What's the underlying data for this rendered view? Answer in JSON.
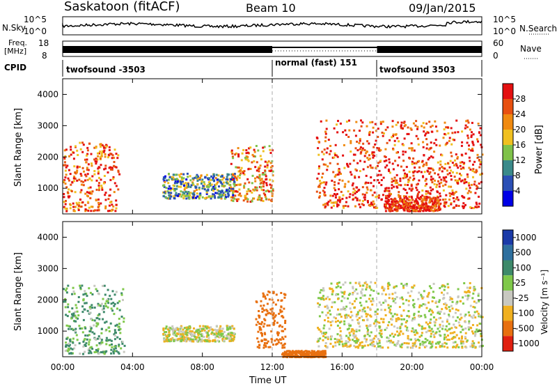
{
  "header": {
    "station": "Saskatoon (fitACF)",
    "beam": "Beam 10",
    "date": "09/Jan/2015"
  },
  "noise_panel": {
    "left_label": "N.Sky",
    "right_label": "N.Search",
    "left_ticks": [
      "10^5",
      "10^0"
    ],
    "right_ticks": [
      "10^5",
      "10^0"
    ]
  },
  "freq_panel": {
    "left_label_line1": "Freq.",
    "left_label_line2": "[MHz]",
    "right_label": "Nave",
    "left_ticks": [
      "18",
      "8"
    ],
    "right_ticks": [
      "60",
      "0"
    ]
  },
  "cpid": {
    "label": "CPID",
    "segments": [
      "twofsound -3503",
      "normal (fast) 151",
      "twofsound 3503"
    ]
  },
  "power_panel": {
    "ylabel": "Slant Range [km]",
    "yticks": [
      "1000",
      "2000",
      "3000",
      "4000"
    ],
    "colorbar_title": "Power [dB]",
    "colorbar_ticks": [
      "4",
      "8",
      "12",
      "16",
      "20",
      "24",
      "28"
    ],
    "colors": [
      "#0000e6",
      "#2b4fb5",
      "#3a8a8a",
      "#7fc24a",
      "#f0c020",
      "#f08a10",
      "#e85010",
      "#e41010"
    ]
  },
  "velocity_panel": {
    "ylabel": "Slant Range [km]",
    "yticks": [
      "1000",
      "2000",
      "3000",
      "4000"
    ],
    "colorbar_title": "Velocity [m s⁻¹]",
    "colorbar_ticks": [
      "1000",
      "500",
      "100",
      "25",
      "-25",
      "-100",
      "-500",
      "-1000"
    ],
    "colors": [
      "#1a3aa8",
      "#2e6f9e",
      "#3e8a6a",
      "#7fc84a",
      "#c8c8c0",
      "#f0b020",
      "#e87010",
      "#e02010"
    ]
  },
  "x_axis": {
    "ticks": [
      "00:00",
      "04:00",
      "08:00",
      "12:00",
      "16:00",
      "20:00",
      "00:00"
    ],
    "label": "Time UT"
  },
  "chart_data": [
    {
      "type": "line",
      "title": "Saskatoon (fitACF)",
      "subtitle": "Beam 10",
      "xlabel": "",
      "ylabel": "N.Sky",
      "y_right_label": "N.Search",
      "x": [
        "00:00",
        "04:00",
        "08:00",
        "12:00",
        "16:00",
        "20:00",
        "00:00"
      ],
      "y_scale": "log",
      "ylim": [
        1,
        100000
      ]
    },
    {
      "type": "line",
      "ylabel": "Freq. [MHz]",
      "y_right_label": "Nave",
      "ylim": [
        8,
        18
      ],
      "y_right_lim": [
        0,
        60
      ],
      "series": [
        {
          "name": "Freq.",
          "x_hours": [
            0,
            12,
            12,
            18,
            18,
            24
          ],
          "values": [
            11,
            11,
            10,
            10,
            11,
            11
          ]
        },
        {
          "name": "Nave",
          "x_hours": [
            0,
            12,
            12,
            18,
            18,
            24
          ],
          "values": [
            25,
            25,
            12,
            12,
            25,
            25
          ]
        }
      ]
    },
    {
      "type": "heatmap",
      "title": "Power [dB]",
      "xlabel": "Time UT",
      "ylabel": "Slant Range [km]",
      "xlim_hours": [
        0,
        24
      ],
      "ylim": [
        180,
        4500
      ],
      "colorbar_ticks": [
        4,
        8,
        12,
        16,
        20,
        24,
        28
      ],
      "features": [
        {
          "t0": 0.0,
          "t1": 3.2,
          "r0": 300,
          "r1": 2500,
          "level": 24
        },
        {
          "t0": 5.7,
          "t1": 9.8,
          "r0": 700,
          "r1": 1500,
          "level": 10
        },
        {
          "t0": 9.6,
          "t1": 12.0,
          "r0": 600,
          "r1": 2400,
          "level": 20
        },
        {
          "t0": 14.5,
          "t1": 24.0,
          "r0": 400,
          "r1": 3200,
          "level": 26
        },
        {
          "t0": 18.4,
          "t1": 21.6,
          "r0": 300,
          "r1": 800,
          "level": 28
        }
      ]
    },
    {
      "type": "heatmap",
      "title": "Velocity [m s⁻¹]",
      "xlabel": "Time UT",
      "ylabel": "Slant Range [km]",
      "xlim_hours": [
        0,
        24
      ],
      "ylim": [
        180,
        4500
      ],
      "colorbar_ticks": [
        1000,
        500,
        100,
        25,
        -25,
        -100,
        -500,
        -1000
      ],
      "features": [
        {
          "t0": 0.0,
          "t1": 3.5,
          "r0": 300,
          "r1": 2500,
          "level": 100
        },
        {
          "t0": 5.7,
          "t1": 9.8,
          "r0": 700,
          "r1": 1200,
          "level": 0
        },
        {
          "t0": 11.0,
          "t1": 12.7,
          "r0": 500,
          "r1": 2300,
          "level": -300
        },
        {
          "t0": 14.5,
          "t1": 24.0,
          "r0": 500,
          "r1": 2600,
          "level": 0
        },
        {
          "t0": 12.5,
          "t1": 15.0,
          "r0": 200,
          "r1": 400,
          "level": -400
        }
      ]
    }
  ]
}
